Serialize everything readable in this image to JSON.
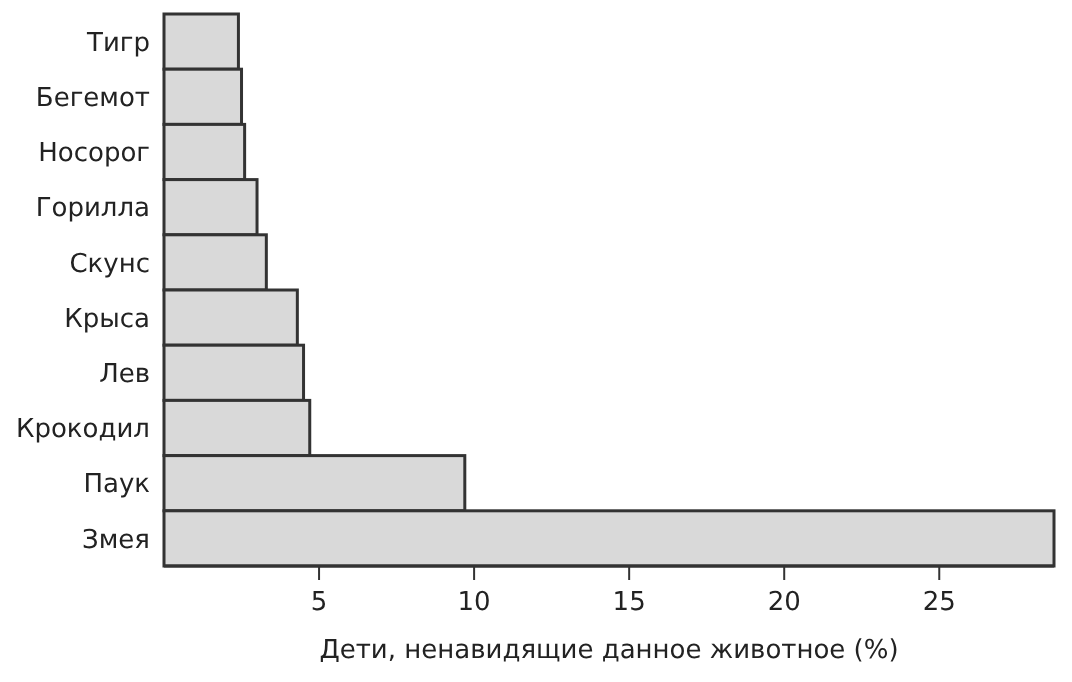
{
  "chart_data": {
    "type": "bar",
    "orientation": "horizontal",
    "xlabel": "Дети, ненавидящие данное животное (%)",
    "categories": [
      "Тигр",
      "Бегемот",
      "Носорог",
      "Горилла",
      "Скунс",
      "Крыса",
      "Лев",
      "Крокодил",
      "Паук",
      "Змея"
    ],
    "values": [
      2.4,
      2.5,
      2.6,
      3.0,
      3.3,
      4.3,
      4.5,
      4.7,
      9.7,
      28.7
    ],
    "color": "#d9d9d9",
    "xlim": [
      0,
      28.7
    ],
    "xticks": [
      5,
      10,
      15,
      20,
      25
    ],
    "grid": false
  }
}
